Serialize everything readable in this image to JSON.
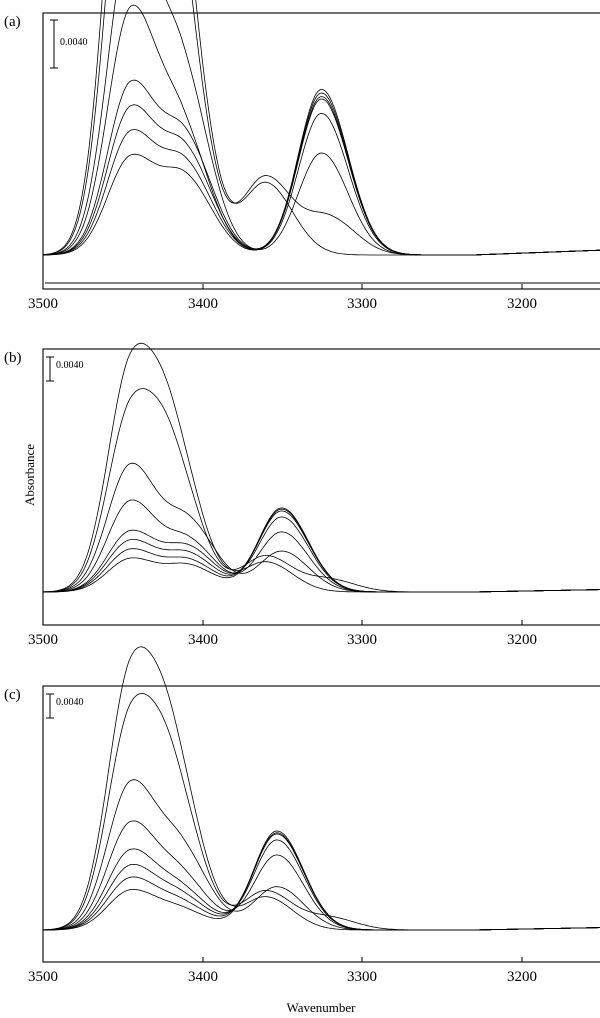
{
  "figure": {
    "ylabel": "Absorbance",
    "xlabel": "Wavenumber"
  },
  "chart_data": [
    {
      "type": "line",
      "panel_label": "(a)",
      "xlabel": "",
      "ylabel": "",
      "xlim": [
        3500,
        3150
      ],
      "x_ticks": [
        3500,
        3400,
        3300,
        3200
      ],
      "tick_labels": [
        "3500",
        "3400",
        "3300",
        "3200"
      ],
      "scale_bar_label": "0.0040",
      "y_tick_labels_shown": false,
      "baseline_present": true,
      "series": [
        {
          "peaks": [
            {
              "x": 3445,
              "h": 0.045
            },
            {
              "x": 3418,
              "h": 0.027
            },
            {
              "x": 3360,
              "h": 0.006
            }
          ]
        },
        {
          "peaks": [
            {
              "x": 3445,
              "h": 0.038
            },
            {
              "x": 3418,
              "h": 0.024
            },
            {
              "x": 3360,
              "h": 0.0065
            },
            {
              "x": 3320,
              "h": 0.003
            }
          ]
        },
        {
          "peaks": [
            {
              "x": 3445,
              "h": 0.026
            },
            {
              "x": 3412,
              "h": 0.014
            },
            {
              "x": 3325,
              "h": 0.0085
            }
          ]
        },
        {
          "peaks": [
            {
              "x": 3445,
              "h": 0.02
            },
            {
              "x": 3412,
              "h": 0.0095
            },
            {
              "x": 3325,
              "h": 0.0118
            }
          ]
        },
        {
          "peaks": [
            {
              "x": 3445,
              "h": 0.014
            },
            {
              "x": 3410,
              "h": 0.009
            },
            {
              "x": 3325,
              "h": 0.013
            }
          ]
        },
        {
          "peaks": [
            {
              "x": 3445,
              "h": 0.012
            },
            {
              "x": 3410,
              "h": 0.008
            },
            {
              "x": 3325,
              "h": 0.0135
            }
          ]
        },
        {
          "peaks": [
            {
              "x": 3445,
              "h": 0.01
            },
            {
              "x": 3410,
              "h": 0.007
            },
            {
              "x": 3325,
              "h": 0.0138
            }
          ]
        },
        {
          "peaks": [
            {
              "x": 3445,
              "h": 0.008
            },
            {
              "x": 3410,
              "h": 0.006
            },
            {
              "x": 3325,
              "h": 0.0132
            }
          ]
        }
      ]
    },
    {
      "type": "line",
      "panel_label": "(b)",
      "xlabel": "",
      "ylabel": "Absorbance",
      "xlim": [
        3500,
        3150
      ],
      "x_ticks": [
        3500,
        3400,
        3300,
        3200
      ],
      "tick_labels": [
        "3500",
        "3400",
        "3300",
        "3200"
      ],
      "scale_bar_label": "0.0040",
      "y_tick_labels_shown": false,
      "baseline_present": false,
      "series": [
        {
          "peaks": [
            {
              "x": 3445,
              "h": 0.036
            },
            {
              "x": 3418,
              "h": 0.022
            },
            {
              "x": 3360,
              "h": 0.005
            }
          ]
        },
        {
          "peaks": [
            {
              "x": 3445,
              "h": 0.029
            },
            {
              "x": 3418,
              "h": 0.019
            },
            {
              "x": 3360,
              "h": 0.006
            },
            {
              "x": 3320,
              "h": 0.002
            }
          ]
        },
        {
          "peaks": [
            {
              "x": 3445,
              "h": 0.021
            },
            {
              "x": 3408,
              "h": 0.011
            },
            {
              "x": 3350,
              "h": 0.0068
            }
          ]
        },
        {
          "peaks": [
            {
              "x": 3445,
              "h": 0.015
            },
            {
              "x": 3408,
              "h": 0.008
            },
            {
              "x": 3350,
              "h": 0.01
            }
          ]
        },
        {
          "peaks": [
            {
              "x": 3445,
              "h": 0.01
            },
            {
              "x": 3408,
              "h": 0.007
            },
            {
              "x": 3350,
              "h": 0.0125
            }
          ]
        },
        {
          "peaks": [
            {
              "x": 3445,
              "h": 0.0085
            },
            {
              "x": 3408,
              "h": 0.006
            },
            {
              "x": 3350,
              "h": 0.0135
            }
          ]
        },
        {
          "peaks": [
            {
              "x": 3445,
              "h": 0.007
            },
            {
              "x": 3408,
              "h": 0.005
            },
            {
              "x": 3350,
              "h": 0.014
            }
          ]
        },
        {
          "peaks": [
            {
              "x": 3445,
              "h": 0.0055
            },
            {
              "x": 3408,
              "h": 0.0042
            },
            {
              "x": 3350,
              "h": 0.0138
            }
          ]
        }
      ]
    },
    {
      "type": "line",
      "panel_label": "(c)",
      "xlabel": "Wavenumber",
      "ylabel": "",
      "xlim": [
        3500,
        3150
      ],
      "x_ticks": [
        3500,
        3400,
        3300,
        3200
      ],
      "tick_labels": [
        "3500",
        "3400",
        "3300",
        "3200"
      ],
      "scale_bar_label": "0.0040",
      "y_tick_labels_shown": false,
      "baseline_present": false,
      "series": [
        {
          "peaks": [
            {
              "x": 3445,
              "h": 0.041
            },
            {
              "x": 3418,
              "h": 0.025
            },
            {
              "x": 3360,
              "h": 0.0055
            }
          ]
        },
        {
          "peaks": [
            {
              "x": 3445,
              "h": 0.034
            },
            {
              "x": 3418,
              "h": 0.0215
            },
            {
              "x": 3360,
              "h": 0.0065
            },
            {
              "x": 3320,
              "h": 0.002
            }
          ]
        },
        {
          "peaks": [
            {
              "x": 3445,
              "h": 0.024
            },
            {
              "x": 3412,
              "h": 0.012
            },
            {
              "x": 3353,
              "h": 0.0072
            }
          ]
        },
        {
          "peaks": [
            {
              "x": 3445,
              "h": 0.0175
            },
            {
              "x": 3412,
              "h": 0.008
            },
            {
              "x": 3353,
              "h": 0.0125
            }
          ]
        },
        {
          "peaks": [
            {
              "x": 3445,
              "h": 0.013
            },
            {
              "x": 3412,
              "h": 0.006
            },
            {
              "x": 3353,
              "h": 0.015
            }
          ]
        },
        {
          "peaks": [
            {
              "x": 3445,
              "h": 0.0105
            },
            {
              "x": 3412,
              "h": 0.005
            },
            {
              "x": 3353,
              "h": 0.016
            }
          ]
        },
        {
          "peaks": [
            {
              "x": 3445,
              "h": 0.0085
            },
            {
              "x": 3412,
              "h": 0.004
            },
            {
              "x": 3353,
              "h": 0.0165
            }
          ]
        },
        {
          "peaks": [
            {
              "x": 3445,
              "h": 0.0065
            },
            {
              "x": 3412,
              "h": 0.003
            },
            {
              "x": 3353,
              "h": 0.0162
            }
          ]
        }
      ]
    }
  ]
}
